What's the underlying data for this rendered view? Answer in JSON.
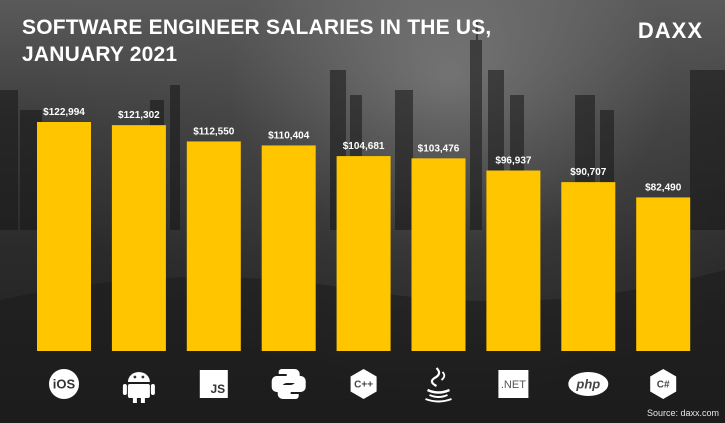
{
  "header": {
    "title_line1": "SOFTWARE ENGINEER SALARIES IN THE US,",
    "title_line2": "JANUARY 2021",
    "logo": "DAXX"
  },
  "footer": {
    "source": "Source: daxx.com"
  },
  "colors": {
    "bar": "#ffc600",
    "text": "#ffffff"
  },
  "chart_data": {
    "type": "bar",
    "title": "SOFTWARE ENGINEER SALARIES IN THE US, JANUARY 2021",
    "xlabel": "",
    "ylabel": "",
    "categories": [
      "iOS",
      "Android",
      "JavaScript",
      "Python",
      "C++",
      "Java",
      ".NET",
      "PHP",
      "C#"
    ],
    "icons": [
      "ios-icon",
      "android-icon",
      "javascript-icon",
      "python-icon",
      "cplusplus-icon",
      "java-icon",
      "dotnet-icon",
      "php-icon",
      "csharp-icon"
    ],
    "icon_text": [
      "iOS",
      "",
      "JS",
      "",
      "C++",
      "",
      ".NET",
      "php",
      "C#"
    ],
    "values": [
      122994,
      121302,
      112550,
      110404,
      104681,
      103476,
      96937,
      90707,
      82490
    ],
    "value_labels": [
      "$122,994",
      "$121,302",
      "$112,550",
      "$110,404",
      "$104,681",
      "$103,476",
      "$96,937",
      "$90,707",
      "$82,490"
    ],
    "ylim": [
      0,
      122994
    ],
    "grid": false,
    "legend": "none"
  }
}
